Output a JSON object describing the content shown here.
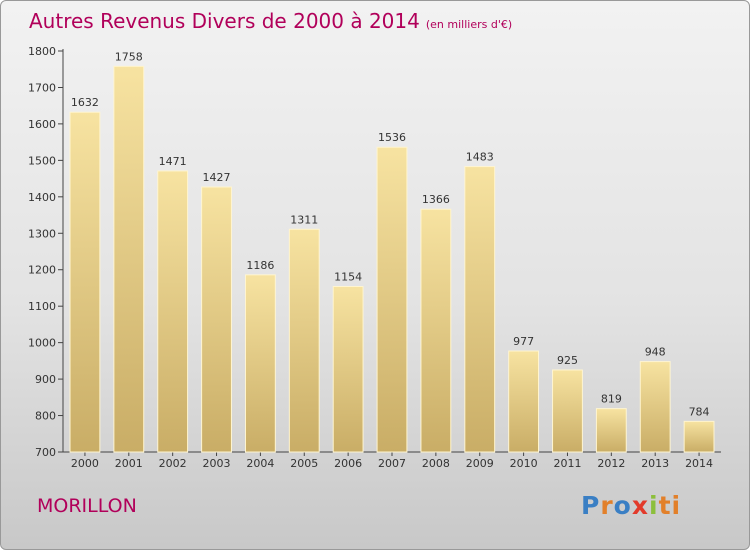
{
  "header": {
    "title": "Autres Revenus Divers de 2000 à 2014",
    "unit": "(en milliers d'€)"
  },
  "footer": {
    "commune": "MORILLON",
    "brand_letters": [
      "P",
      "r",
      "o",
      "x",
      "i",
      "ti"
    ]
  },
  "colors": {
    "title": "#b1005a",
    "bar_light": "#f7e3a1",
    "bar_dark": "#c9ad66",
    "axis": "#444444"
  },
  "chart_data": {
    "type": "bar",
    "categories": [
      "2000",
      "2001",
      "2002",
      "2003",
      "2004",
      "2005",
      "2006",
      "2007",
      "2008",
      "2009",
      "2010",
      "2011",
      "2012",
      "2013",
      "2014"
    ],
    "values": [
      1632,
      1758,
      1471,
      1427,
      1186,
      1311,
      1154,
      1536,
      1366,
      1483,
      977,
      925,
      819,
      948,
      784
    ],
    "ylim": [
      700,
      1800
    ],
    "yticks": [
      700,
      800,
      900,
      1000,
      1100,
      1200,
      1300,
      1400,
      1500,
      1600,
      1700,
      1800
    ],
    "grid": false,
    "legend": "none"
  }
}
